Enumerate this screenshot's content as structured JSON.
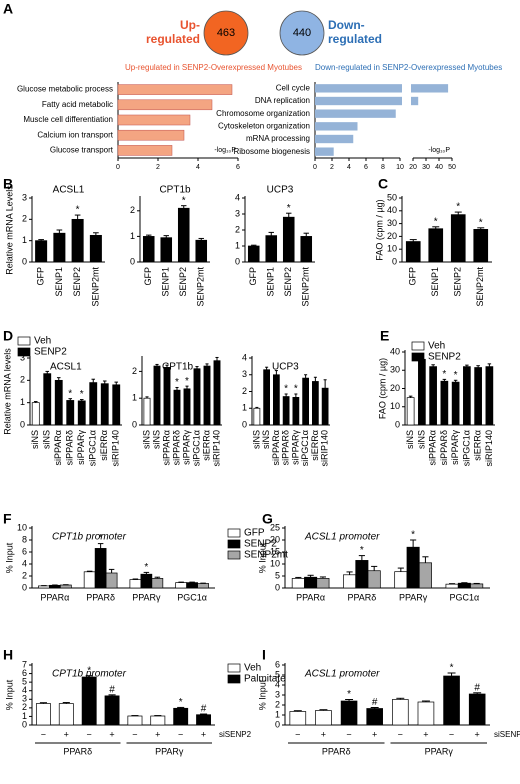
{
  "chart_data": [
    {
      "type": "venn",
      "panel": "A",
      "sets": [
        {
          "label": [
            "Up-",
            "regulated"
          ],
          "count": 463,
          "color": "#f26522",
          "label_color": "#e8532f"
        },
        {
          "label": [
            "Down-",
            "regulated"
          ],
          "count": 440,
          "color": "#8fb4e3",
          "label_color": "#2d6fb5"
        }
      ]
    },
    {
      "type": "hbar",
      "title": "Up-regulated in SENP2-Overexpressed Myotubes",
      "title_color": "#e8532f",
      "color": "#f4a582",
      "categories": [
        "Glucose metabolic process",
        "Fatty acid metabolic",
        "Muscle cell differentiation",
        "Calcium ion transport",
        "Glucose transport"
      ],
      "values": [
        5.7,
        4.7,
        3.6,
        3.3,
        2.7
      ],
      "xlim": [
        0,
        6
      ],
      "xticks": [
        0,
        2,
        4,
        6
      ],
      "xlabel": "-log₁₀P"
    },
    {
      "type": "hbar",
      "title": "Down-regulated in SENP2-Overexpressed Myotubes",
      "title_color": "#2d6fb5",
      "color": "#95b3d7",
      "categories": [
        "Cell cycle",
        "DNA replication",
        "Chromosome organization",
        "Cytoskeleton organization",
        "mRNA processing",
        "Ribosome biogenesis"
      ],
      "values": [
        47,
        24,
        9.5,
        5,
        4.5,
        2.2
      ],
      "xlim": [
        0,
        10
      ],
      "xticks": [
        0,
        2,
        4,
        6,
        8,
        10
      ],
      "x2lim": [
        20,
        50
      ],
      "x2ticks": [
        20,
        30,
        40,
        50
      ],
      "xlabel": "-log₁₀P"
    },
    {
      "type": "bar",
      "panel": "B",
      "title": "ACSL1",
      "ylabel": "Relative mRNA Levels",
      "categories": [
        "GFP",
        "SENP1",
        "SENP2",
        "SENP2mt"
      ],
      "series": [
        {
          "color": "#000000",
          "values": [
            1,
            1.35,
            2.0,
            1.25
          ],
          "errors": [
            0.05,
            0.15,
            0.2,
            0.12
          ],
          "annotations": [
            null,
            null,
            "*",
            null
          ]
        }
      ],
      "ylim": [
        0,
        3
      ],
      "yticks": [
        0,
        1,
        2,
        3
      ]
    },
    {
      "type": "bar",
      "title": "CPT1b",
      "categories": [
        "GFP",
        "SENP1",
        "SENP2",
        "SENP2mt"
      ],
      "series": [
        {
          "color": "#000000",
          "values": [
            1,
            0.95,
            2.1,
            0.85
          ],
          "errors": [
            0.05,
            0.08,
            0.1,
            0.07
          ],
          "annotations": [
            null,
            null,
            "*",
            null
          ]
        }
      ],
      "ylim": [
        0,
        2.5
      ],
      "yticks": [
        0,
        1,
        2
      ]
    },
    {
      "type": "bar",
      "title": "UCP3",
      "categories": [
        "GFP",
        "SENP1",
        "SENP2",
        "SENP2mt"
      ],
      "series": [
        {
          "color": "#000000",
          "values": [
            1,
            1.65,
            2.8,
            1.6
          ],
          "errors": [
            0.05,
            0.2,
            0.25,
            0.2
          ],
          "annotations": [
            null,
            null,
            "*",
            null
          ]
        }
      ],
      "ylim": [
        0,
        4
      ],
      "yticks": [
        0,
        1,
        2,
        3,
        4
      ]
    },
    {
      "type": "bar",
      "panel": "C",
      "ylabel": "FAO (cpm / µg)",
      "categories": [
        "GFP",
        "SENP1",
        "SENP2",
        "SENP2mt"
      ],
      "series": [
        {
          "color": "#000000",
          "values": [
            16,
            26,
            37,
            25.5
          ],
          "errors": [
            1.5,
            1.5,
            2,
            1.2
          ],
          "annotations": [
            null,
            "*",
            "*",
            "*"
          ]
        }
      ],
      "ylim": [
        0,
        50
      ],
      "yticks": [
        0,
        10,
        20,
        30,
        40,
        50
      ]
    },
    {
      "type": "bar",
      "panel": "D",
      "title": "ACSL1",
      "ylabel": "Relative mRNA levels",
      "legend": true,
      "categories": [
        "siNS",
        "siNS",
        "siPPARα",
        "siPPARδ",
        "siPPARγ",
        "siPGC1α",
        "siERRα",
        "siRIP140"
      ],
      "series": [
        {
          "name": "Veh",
          "color": "#ffffff",
          "values": [
            1,
            null,
            null,
            null,
            null,
            null,
            null,
            null
          ],
          "errors": [
            0.05,
            null,
            null,
            null,
            null,
            null,
            null,
            null
          ],
          "annotations": [
            null,
            null,
            null,
            null,
            null,
            null,
            null,
            null
          ]
        },
        {
          "name": "SENP2",
          "color": "#000000",
          "values": [
            null,
            2.3,
            2.0,
            1.1,
            1.08,
            1.9,
            1.85,
            1.8
          ],
          "errors": [
            null,
            0.1,
            0.12,
            0.08,
            0.06,
            0.15,
            0.12,
            0.12
          ],
          "annotations": [
            null,
            null,
            null,
            "*",
            "*",
            null,
            null,
            null
          ]
        }
      ],
      "ylim": [
        0,
        3
      ],
      "yticks": [
        0,
        1,
        2,
        3
      ]
    },
    {
      "type": "bar",
      "title": "CPT1b",
      "categories": [
        "siNS",
        "siNS",
        "siPPARα",
        "siPPARδ",
        "siPPARγ",
        "siPGC1α",
        "siERRα",
        "siRIP140"
      ],
      "series": [
        {
          "name": "Veh",
          "color": "#ffffff",
          "values": [
            1,
            null,
            null,
            null,
            null,
            null,
            null,
            null
          ],
          "errors": [
            0.05,
            null,
            null,
            null,
            null,
            null,
            null,
            null
          ],
          "annotations": [
            null,
            null,
            null,
            null,
            null,
            null,
            null,
            null
          ]
        },
        {
          "name": "SENP2",
          "color": "#000000",
          "values": [
            null,
            2.2,
            2.15,
            1.3,
            1.35,
            2.1,
            2.2,
            2.4
          ],
          "errors": [
            null,
            0.06,
            0.08,
            0.1,
            0.1,
            0.08,
            0.08,
            0.12
          ],
          "annotations": [
            null,
            null,
            null,
            "*",
            "*",
            null,
            null,
            null
          ]
        }
      ],
      "ylim": [
        0,
        2.5
      ],
      "yticks": [
        0,
        1,
        2
      ]
    },
    {
      "type": "bar",
      "title": "UCP3",
      "categories": [
        "siNS",
        "siNS",
        "siPPARα",
        "siPPARδ",
        "siPPARγ",
        "siPGC1α",
        "siERRα",
        "siRIP140"
      ],
      "series": [
        {
          "name": "Veh",
          "color": "#ffffff",
          "values": [
            1,
            null,
            null,
            null,
            null,
            null,
            null,
            null
          ],
          "errors": [
            0.05,
            null,
            null,
            null,
            null,
            null,
            null,
            null
          ],
          "annotations": [
            null,
            null,
            null,
            null,
            null,
            null,
            null,
            null
          ]
        },
        {
          "name": "SENP2",
          "color": "#000000",
          "values": [
            null,
            3.3,
            3.0,
            1.7,
            1.65,
            2.8,
            2.6,
            2.2
          ],
          "errors": [
            null,
            0.15,
            0.25,
            0.15,
            0.2,
            0.2,
            0.25,
            0.5
          ],
          "annotations": [
            null,
            null,
            null,
            "*",
            "*",
            null,
            null,
            null
          ]
        }
      ],
      "ylim": [
        0,
        4
      ],
      "yticks": [
        0,
        1,
        2,
        3,
        4
      ]
    },
    {
      "type": "bar",
      "panel": "E",
      "ylabel": "FAO (cpm / µg)",
      "legend": true,
      "categories": [
        "siNS",
        "siNS",
        "siPPARα",
        "siPPARδ",
        "siPPARγ",
        "siPGC1α",
        "siERRα",
        "siRIP140"
      ],
      "series": [
        {
          "name": "Veh",
          "color": "#ffffff",
          "values": [
            15,
            null,
            null,
            null,
            null,
            null,
            null,
            null
          ],
          "errors": [
            0.8,
            null,
            null,
            null,
            null,
            null,
            null,
            null
          ],
          "annotations": [
            null,
            null,
            null,
            null,
            null,
            null,
            null,
            null
          ]
        },
        {
          "name": "SENP2",
          "color": "#000000",
          "values": [
            null,
            36,
            32,
            24,
            23.5,
            32,
            31.5,
            32
          ],
          "errors": [
            null,
            1.2,
            1,
            1,
            1,
            0.8,
            1,
            1.5
          ],
          "annotations": [
            null,
            null,
            null,
            "*",
            "*",
            null,
            null,
            null
          ]
        }
      ],
      "ylim": [
        0,
        40
      ],
      "yticks": [
        0,
        10,
        20,
        30,
        40
      ]
    },
    {
      "type": "bar",
      "panel": "F",
      "grouped": true,
      "title": "CPT1b promoter",
      "ylabel": "% Input",
      "legend": true,
      "categories": [
        "PPARα",
        "PPARδ",
        "PPARγ",
        "PGC1α"
      ],
      "series": [
        {
          "name": "GFP",
          "color": "#ffffff",
          "values": [
            0.35,
            2.7,
            1.4,
            0.9
          ],
          "errors": [
            0.05,
            0.1,
            0.1,
            0.08
          ],
          "annotations": [
            null,
            null,
            null,
            null
          ]
        },
        {
          "name": "SENP2",
          "color": "#000000",
          "values": [
            0.45,
            6.6,
            2.3,
            0.9
          ],
          "errors": [
            0.05,
            0.8,
            0.3,
            0.08
          ],
          "annotations": [
            null,
            "*",
            "*",
            null
          ]
        },
        {
          "name": "SENP2mt",
          "color": "#a6a6a6",
          "values": [
            0.5,
            2.5,
            1.6,
            0.75
          ],
          "errors": [
            0.05,
            0.6,
            0.2,
            0.06
          ],
          "annotations": [
            null,
            null,
            null,
            null
          ]
        }
      ],
      "ylim": [
        0,
        10
      ],
      "yticks": [
        0,
        2,
        4,
        6,
        8,
        10
      ]
    },
    {
      "type": "bar",
      "panel": "G",
      "grouped": true,
      "title": "ACSL1 promoter",
      "ylabel": "% Input",
      "categories": [
        "PPARα",
        "PPARδ",
        "PPARγ",
        "PGC1α"
      ],
      "series": [
        {
          "name": "GFP",
          "color": "#ffffff",
          "values": [
            4,
            5.5,
            6.8,
            1.6
          ],
          "errors": [
            0.4,
            1.2,
            1.5,
            0.2
          ],
          "annotations": [
            null,
            null,
            null,
            null
          ]
        },
        {
          "name": "SENP2",
          "color": "#000000",
          "values": [
            4.5,
            11.5,
            17,
            2
          ],
          "errors": [
            0.8,
            2,
            3,
            0.2
          ],
          "annotations": [
            null,
            "*",
            "*",
            null
          ]
        },
        {
          "name": "SENP2mt",
          "color": "#a6a6a6",
          "values": [
            4,
            7.2,
            10.5,
            1.7
          ],
          "errors": [
            0.6,
            1.8,
            2.5,
            0.2
          ],
          "annotations": [
            null,
            null,
            null,
            null
          ]
        }
      ],
      "ylim": [
        0,
        25
      ],
      "yticks": [
        0,
        5,
        10,
        15,
        20,
        25
      ]
    },
    {
      "type": "bar",
      "panel": "H",
      "title": "CPT1b promoter",
      "ylabel": "% Input",
      "legend": true,
      "xlabel": "siSENP2",
      "groups": [
        "PPARδ",
        "PPARγ"
      ],
      "categories": [
        "−",
        "+",
        "−",
        "+",
        "−",
        "+",
        "−",
        "+"
      ],
      "series": [
        {
          "name": "Veh",
          "color": "#ffffff",
          "values": [
            2.5,
            2.5,
            null,
            null,
            1.05,
            1.05,
            null,
            null
          ],
          "errors": [
            0.1,
            0.12,
            null,
            null,
            0.05,
            0.05,
            null,
            null
          ],
          "annotations": [
            null,
            null,
            null,
            null,
            null,
            null,
            null,
            null
          ]
        },
        {
          "name": "Palmitate",
          "color": "#000000",
          "values": [
            null,
            null,
            5.6,
            3.4,
            null,
            null,
            1.95,
            1.2
          ],
          "errors": [
            null,
            null,
            0.15,
            0.12,
            null,
            null,
            0.1,
            0.08
          ],
          "annotations": [
            null,
            null,
            "*",
            "#",
            null,
            null,
            "*",
            "#"
          ]
        }
      ],
      "ylim": [
        0,
        7
      ],
      "yticks": [
        0,
        1,
        2,
        3,
        4,
        5,
        6,
        7
      ]
    },
    {
      "type": "bar",
      "panel": "I",
      "title": "ACSL1 promoter",
      "ylabel": "% Input",
      "xlabel": "siSENP2",
      "groups": [
        "PPARδ",
        "PPARγ"
      ],
      "categories": [
        "−",
        "+",
        "−",
        "+",
        "−",
        "+",
        "−",
        "+"
      ],
      "series": [
        {
          "name": "Veh",
          "color": "#ffffff",
          "values": [
            1.35,
            1.45,
            null,
            null,
            2.55,
            2.3,
            null,
            null
          ],
          "errors": [
            0.08,
            0.08,
            null,
            null,
            0.12,
            0.1,
            null,
            null
          ],
          "annotations": [
            null,
            null,
            null,
            null,
            null,
            null,
            null,
            null
          ]
        },
        {
          "name": "Palmitate",
          "color": "#000000",
          "values": [
            null,
            null,
            2.4,
            1.65,
            null,
            null,
            4.9,
            3.1
          ],
          "errors": [
            null,
            null,
            0.15,
            0.1,
            null,
            null,
            0.3,
            0.12
          ],
          "annotations": [
            null,
            null,
            "*",
            "#",
            null,
            null,
            "*",
            "#"
          ]
        }
      ],
      "ylim": [
        0,
        6
      ],
      "yticks": [
        0,
        1,
        2,
        3,
        4,
        5,
        6
      ]
    }
  ]
}
